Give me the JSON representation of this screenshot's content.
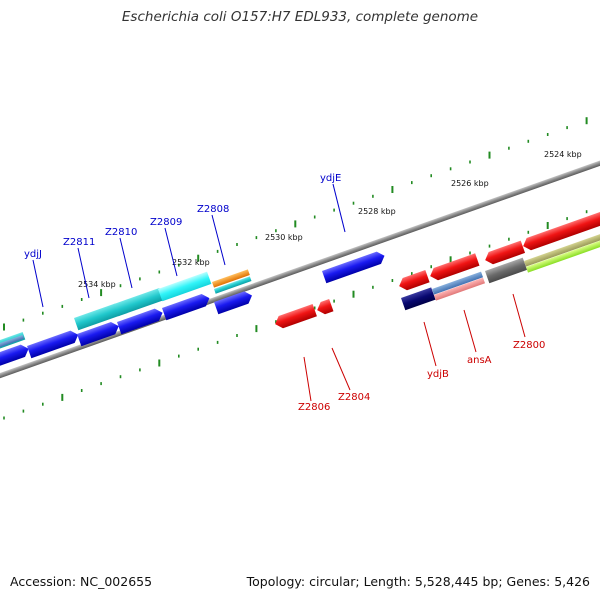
{
  "title": "Escherichia coli O157:H7 EDL933, complete genome",
  "footer": {
    "accession": "Accession: NC_002655",
    "topology": "Topology: circular; Length: 5,528,445 bp; Genes: 5,426"
  },
  "colors": {
    "forward_label": "#0000cc",
    "reverse_label": "#cc0000",
    "tick": "#228b22",
    "backbone": "#888888",
    "gene_blue": "#1010e0",
    "gene_red": "#e01010",
    "gene_cyan": "#20d0d0",
    "gene_orange": "#ff8800",
    "gene_navy": "#000070",
    "gene_gray": "#707070",
    "gene_lime": "#99ee33"
  },
  "scale_labels": [
    "2524 kbp",
    "2526 kbp",
    "2528 kbp",
    "2530 kbp",
    "2532 kbp",
    "2534 kbp"
  ],
  "forward_gene_labels": [
    "ydjJ",
    "Z2811",
    "Z2810",
    "Z2809",
    "Z2808",
    "ydjE"
  ],
  "reverse_gene_labels": [
    "Z2806",
    "Z2804",
    "ydjB",
    "ansA",
    "Z2800"
  ]
}
